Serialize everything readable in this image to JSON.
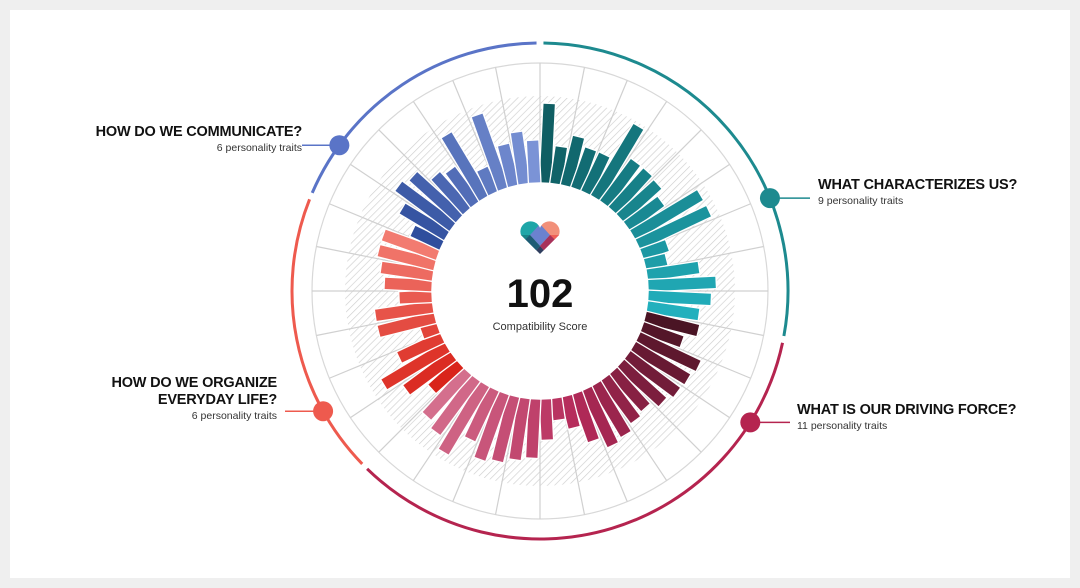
{
  "score": {
    "value": "102",
    "label": "Compatibility Score"
  },
  "chart_data": {
    "type": "radial-bar",
    "value_range": [
      0,
      100
    ],
    "sections": [
      {
        "title": "WHAT CHARACTERIZES US?",
        "subtitle": "9 personality traits",
        "traits": 9,
        "colors": [
          "#0f5e63",
          "#22b0bd"
        ],
        "arc_color": "#1d8a8f",
        "values": [
          95,
          44,
          60,
          50,
          50,
          100,
          62,
          62,
          60,
          50,
          94,
          94,
          31,
          25,
          62,
          81,
          75,
          62
        ]
      },
      {
        "title": "WHAT IS OUR DRIVING FORCE?",
        "subtitle": "11 personality traits",
        "traits": 11,
        "colors": [
          "#4a1424",
          "#b42a5a",
          "#d46f8d"
        ],
        "arc_color": "#b5244f",
        "values": [
          65,
          50,
          80,
          76,
          74,
          68,
          58,
          62,
          70,
          74,
          60,
          38,
          25,
          48,
          70,
          74,
          80,
          84,
          66,
          95,
          80,
          72
        ]
      },
      {
        "title": "HOW DO WE ORGANIZE EVERYDAY LIFE?",
        "title_lines": [
          "HOW DO WE ORGANIZE",
          "EVERYDAY LIFE?"
        ],
        "subtitle": "6 personality traits",
        "traits": 6,
        "colors": [
          "#d9241b",
          "#f27b70"
        ],
        "arc_color": "#ee5a4e",
        "values": [
          44,
          69,
          88,
          56,
          19,
          69,
          69,
          38,
          56,
          62,
          69,
          69
        ]
      },
      {
        "title": "HOW DO WE COMMUNICATE?",
        "subtitle": "6 personality traits",
        "traits": 6,
        "colors": [
          "#2f4e9d",
          "#7b93d6"
        ],
        "arc_color": "#5a74c7",
        "values": [
          38,
          62,
          81,
          75,
          56,
          50,
          88,
          31,
          94,
          50,
          62,
          50
        ]
      }
    ]
  }
}
